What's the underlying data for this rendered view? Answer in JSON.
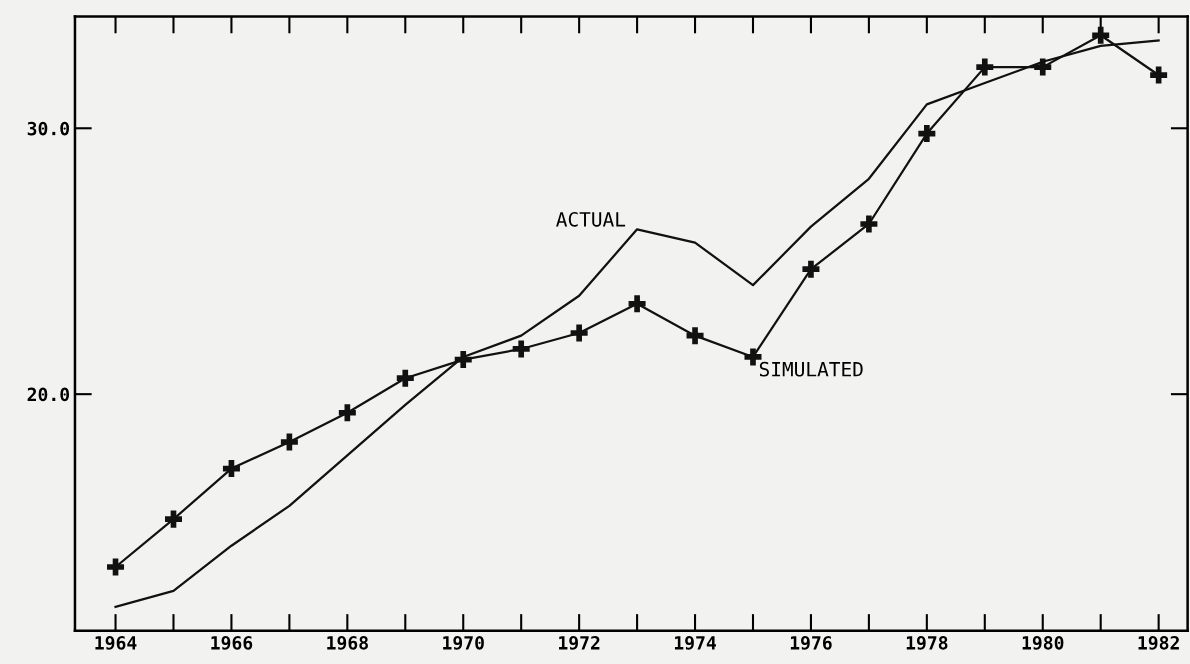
{
  "chart_data": {
    "type": "line",
    "x": [
      1964,
      1965,
      1966,
      1967,
      1968,
      1969,
      1970,
      1971,
      1972,
      1973,
      1974,
      1975,
      1976,
      1977,
      1978,
      1979,
      1980,
      1981,
      1982
    ],
    "series": [
      {
        "color": "#111111",
        "marker": "none",
        "values": [
          12.0,
          12.6,
          14.3,
          15.8,
          17.7,
          19.6,
          21.4,
          22.2,
          23.7,
          26.2,
          25.7,
          24.1,
          26.3,
          28.1,
          30.9,
          31.7,
          32.5,
          33.1,
          33.3
        ]
      },
      {
        "color": "#111111",
        "marker": "cross",
        "values": [
          13.5,
          15.3,
          17.2,
          18.2,
          19.3,
          20.6,
          21.3,
          21.7,
          22.3,
          23.4,
          22.2,
          21.4,
          24.7,
          26.4,
          29.8,
          32.3,
          32.3,
          33.5,
          32.0
        ]
      }
    ],
    "annotations": [
      {
        "text": "ACTUAL",
        "x": 1973,
        "y": 26.2
      },
      {
        "text": "SIMULATED",
        "x": 1975,
        "y": 21.4
      }
    ],
    "xlim": [
      1963.3,
      1982.5
    ],
    "ylim": [
      11.1,
      34.2
    ],
    "xticks": [
      1964,
      1966,
      1968,
      1970,
      1972,
      1974,
      1976,
      1978,
      1980,
      1982
    ],
    "yticks": [
      {
        "value": 20,
        "label": "20.0"
      },
      {
        "value": 30,
        "label": "30.0"
      }
    ],
    "grid": false,
    "legend": false
  }
}
